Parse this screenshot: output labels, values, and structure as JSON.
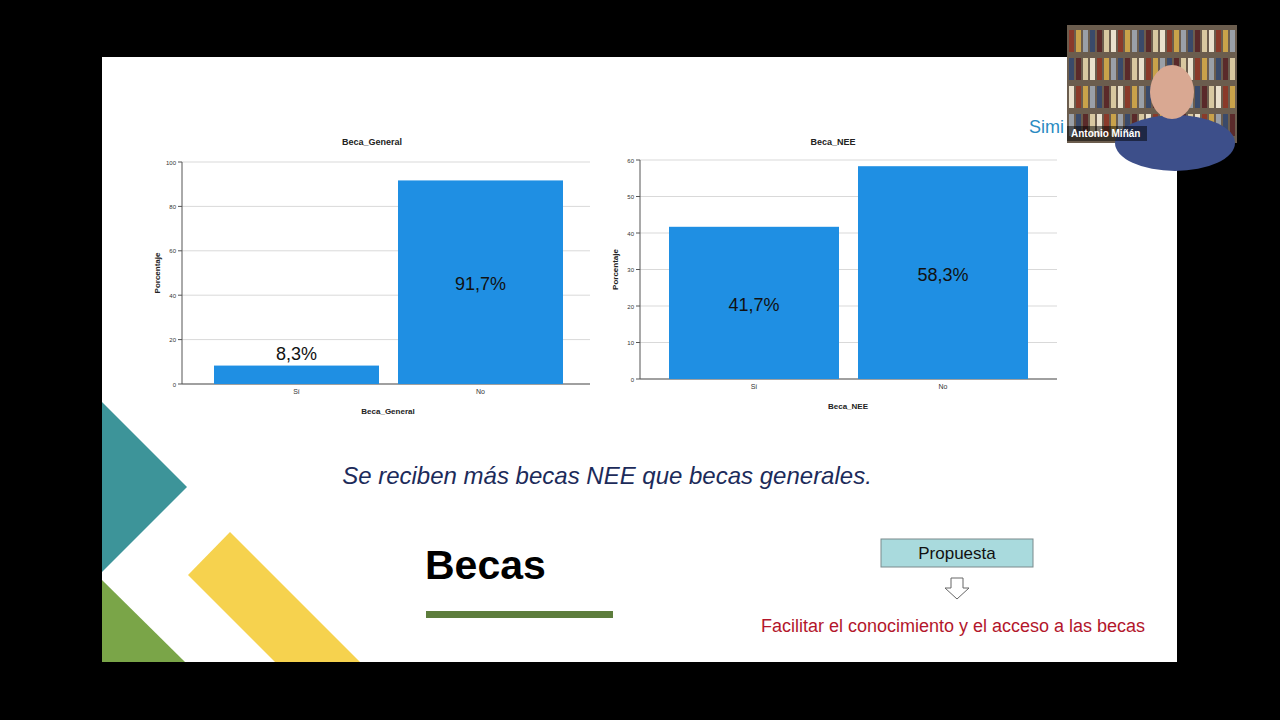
{
  "chart_data": [
    {
      "type": "bar",
      "title": "Beca_General",
      "x_label": "Beca_General",
      "y_label": "Porcentaje",
      "categories": [
        "Sí",
        "No"
      ],
      "values": [
        8.3,
        91.7
      ],
      "value_labels": [
        "8,3%",
        "91,7%"
      ],
      "color": "#1f8fe3",
      "ylim": [
        0,
        100
      ],
      "yticks": [
        0,
        20,
        40,
        60,
        80,
        100
      ],
      "grid": true,
      "data_labels": true
    },
    {
      "type": "bar",
      "title": "Beca_NEE",
      "x_label": "Beca_NEE",
      "y_label": "Porcentaje",
      "categories": [
        "Sí",
        "No"
      ],
      "values": [
        41.7,
        58.3
      ],
      "value_labels": [
        "41,7%",
        "58,3%"
      ],
      "color": "#1f8fe3",
      "ylim": [
        0,
        60
      ],
      "yticks": [
        0,
        10,
        20,
        30,
        40,
        50,
        60
      ],
      "grid": true,
      "data_labels": true
    }
  ],
  "slide": {
    "caption": "Se reciben más becas NEE que becas generales.",
    "heading": "Becas",
    "proposal_label": "Propuesta",
    "proposal_text": "Facilitar el conocimiento y el acceso a las becas",
    "corner_text": "Simi",
    "speaker": "Antonio Miñán"
  }
}
